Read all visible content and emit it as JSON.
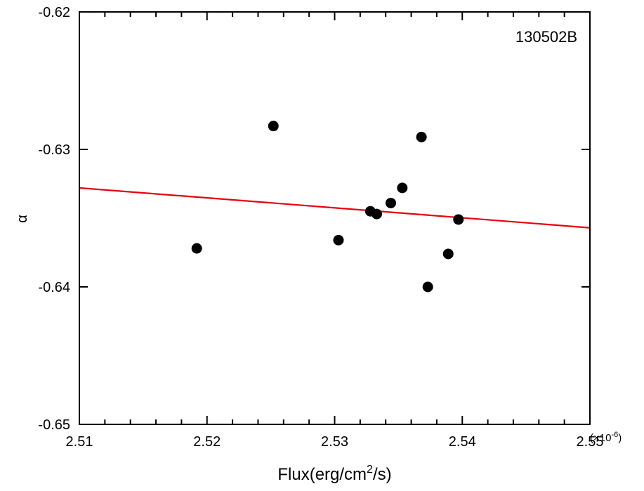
{
  "chart_data": {
    "type": "scatter",
    "title": "",
    "annotation": "130502B",
    "xlabel": {
      "prefix": "Flux(erg/cm",
      "sup": "2",
      "suffix": "/s)"
    },
    "ylabel": "α",
    "x_multiplier": {
      "base": "(×10",
      "exp": "-6",
      "close": ")"
    },
    "xlim": [
      2.51,
      2.55
    ],
    "ylim": [
      -0.65,
      -0.62
    ],
    "x_ticks": [
      2.51,
      2.52,
      2.53,
      2.54,
      2.55
    ],
    "x_tick_labels": [
      "2.51",
      "2.52",
      "2.53",
      "2.54",
      "2.55"
    ],
    "y_ticks": [
      -0.65,
      -0.64,
      -0.63,
      -0.62
    ],
    "y_tick_labels": [
      "-0.65",
      "-0.64",
      "-0.63",
      "-0.62"
    ],
    "grid": false,
    "colors": {
      "points": "#000000",
      "fit_line": "#e8000b",
      "axes": "#000000"
    },
    "points": [
      {
        "x": 2.5192,
        "y": -0.6372
      },
      {
        "x": 2.5252,
        "y": -0.6283
      },
      {
        "x": 2.5303,
        "y": -0.6366
      },
      {
        "x": 2.5328,
        "y": -0.6345
      },
      {
        "x": 2.5333,
        "y": -0.6347
      },
      {
        "x": 2.5344,
        "y": -0.6339
      },
      {
        "x": 2.5353,
        "y": -0.6328
      },
      {
        "x": 2.5368,
        "y": -0.6291
      },
      {
        "x": 2.5373,
        "y": -0.64
      },
      {
        "x": 2.5389,
        "y": -0.6376
      },
      {
        "x": 2.5397,
        "y": -0.6351
      }
    ],
    "fit_line": {
      "x": [
        2.51,
        2.55
      ],
      "y": [
        -0.6328,
        -0.6357
      ]
    }
  }
}
